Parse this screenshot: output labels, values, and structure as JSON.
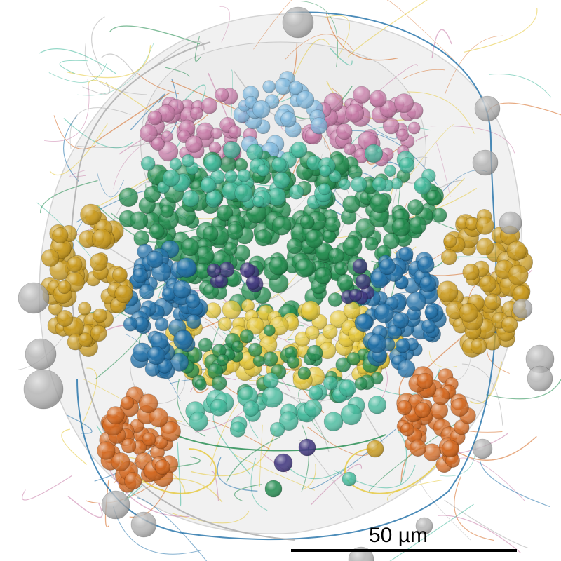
{
  "image": {
    "kind": "3D rendering of neuron cell bodies and neurites inside a semi-transparent tissue outline",
    "background": "#ffffff"
  },
  "scale_bar": {
    "label": "50 µm",
    "color": "#000000"
  },
  "palette": {
    "gray": "#a9a9a9",
    "blue": "#1f6fa8",
    "light_blue": "#7fb8de",
    "green": "#1f8a4c",
    "teal": "#3fb89a",
    "yellow": "#e6c83a",
    "gold": "#c99a1c",
    "orange": "#d3661e",
    "pink": "#c77aa6",
    "purple": "#3a2f7a",
    "dark": "#2b2b2b"
  }
}
